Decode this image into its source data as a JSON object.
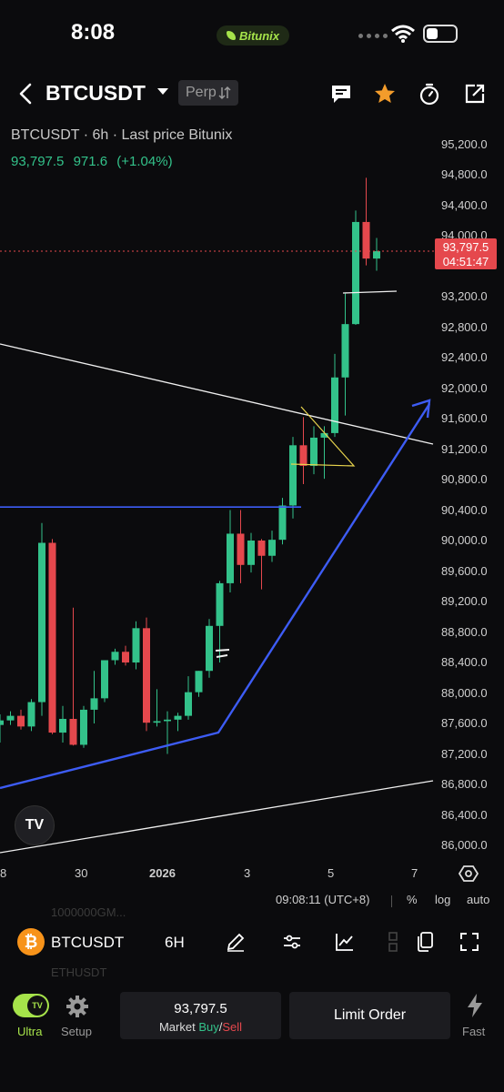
{
  "status": {
    "time": "8:08",
    "brand": "Bitunix"
  },
  "header": {
    "symbol": "BTCUSDT",
    "market_type": "Perp"
  },
  "chart": {
    "info": "BTCUSDT · 6h · Last price Bitunix",
    "last_price": "93,797.5",
    "change_abs": "971.6",
    "change_pct": "(+1.04%)",
    "price_tag_value": "93,797.5",
    "price_tag_countdown": "04:51:47",
    "y_ticks": [
      "95,200.0",
      "94,800.0",
      "94,400.0",
      "94,000.0",
      "93,200.0",
      "92,800.0",
      "92,400.0",
      "92,000.0",
      "91,600.0",
      "91,200.0",
      "90,800.0",
      "90,400.0",
      "90,000.0",
      "89,600.0",
      "89,200.0",
      "88,800.0",
      "88,400.0",
      "88,000.0",
      "87,600.0",
      "87,200.0",
      "86,800.0",
      "86,400.0",
      "86,000.0"
    ],
    "x_ticks": [
      "8",
      "30",
      "2026",
      "3",
      "5",
      "7"
    ],
    "tv_logo": "TV",
    "clock": "09:08:11 (UTC+8)",
    "scale_percent": "%",
    "scale_log": "log",
    "scale_auto": "auto",
    "colors": {
      "up": "#33c28a",
      "down": "#e5484d",
      "trend_blue": "#3d5cf5",
      "line_white": "#f0f0f0",
      "triangle_yellow": "#e8d44d"
    },
    "candles": [
      [
        87580,
        87720,
        87350,
        87640
      ],
      [
        87640,
        87760,
        87580,
        87700
      ],
      [
        87700,
        87780,
        87520,
        87560
      ],
      [
        87560,
        87920,
        87500,
        87880
      ],
      [
        87880,
        90230,
        87700,
        89970
      ],
      [
        89970,
        90020,
        87460,
        87480
      ],
      [
        87480,
        87830,
        87350,
        87660
      ],
      [
        87660,
        89120,
        87310,
        87320
      ],
      [
        87320,
        87830,
        87280,
        87780
      ],
      [
        87780,
        88290,
        87600,
        87930
      ],
      [
        87930,
        88430,
        87880,
        88430
      ],
      [
        88430,
        88580,
        88370,
        88540
      ],
      [
        88540,
        88620,
        88360,
        88400
      ],
      [
        88400,
        88940,
        88310,
        88850
      ],
      [
        88850,
        88990,
        87500,
        87610
      ],
      [
        87610,
        88050,
        87560,
        87630
      ],
      [
        87630,
        87760,
        87200,
        87650
      ],
      [
        87650,
        87740,
        87500,
        87700
      ],
      [
        87700,
        88220,
        87650,
        88010
      ],
      [
        88010,
        88290,
        87950,
        88290
      ],
      [
        88290,
        88970,
        88200,
        88880
      ],
      [
        88880,
        89470,
        88400,
        89440
      ],
      [
        89440,
        90400,
        89320,
        90090
      ],
      [
        90090,
        90400,
        89440,
        89680
      ],
      [
        89680,
        90100,
        89580,
        90000
      ],
      [
        90000,
        90020,
        89360,
        89800
      ],
      [
        89800,
        90130,
        89720,
        90010
      ],
      [
        90010,
        90560,
        89950,
        90460
      ],
      [
        90460,
        91360,
        90290,
        91250
      ],
      [
        91250,
        91620,
        90740,
        90980
      ],
      [
        90980,
        91500,
        90870,
        91350
      ],
      [
        91350,
        91500,
        90810,
        91410
      ],
      [
        91410,
        92450,
        91360,
        92140
      ],
      [
        92140,
        93240,
        91640,
        92840
      ],
      [
        92840,
        94330,
        92830,
        94180
      ],
      [
        94180,
        94760,
        93610,
        93700
      ],
      [
        93700,
        93970,
        93540,
        93797
      ]
    ]
  },
  "toolbar": {
    "symbol": "BTCUSDT",
    "interval": "6H",
    "ghost_above": "1000000GM...",
    "ghost_below": "ETHUSDT"
  },
  "bottom": {
    "ultra_label": "Ultra",
    "setup_label": "Setup",
    "market_price": "93,797.5",
    "market_prefix": "Market ",
    "market_buy": "Buy",
    "market_slash": "/",
    "market_sell": "Sell",
    "limit_label": "Limit Order",
    "fast_label": "Fast"
  }
}
